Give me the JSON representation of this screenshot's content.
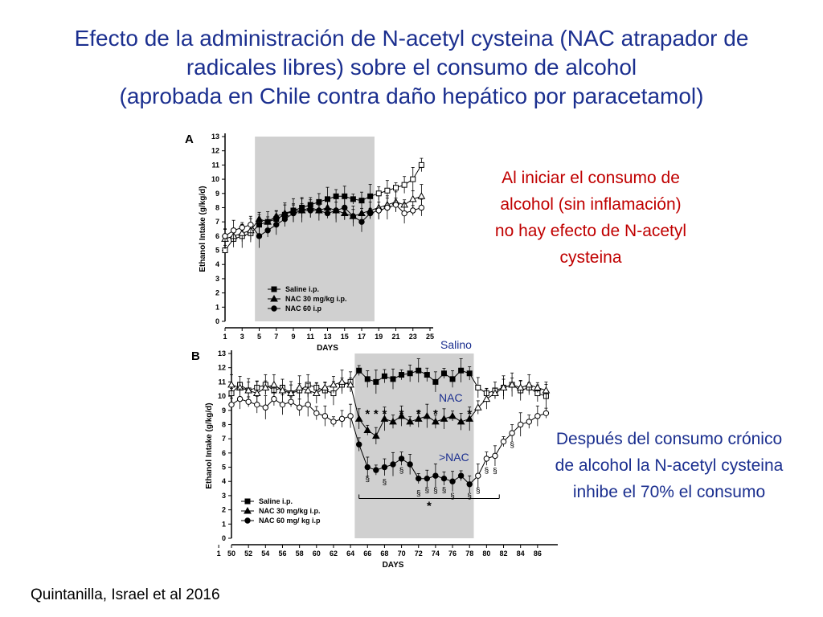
{
  "slide": {
    "title_lines": [
      "Efecto de la administración de N-acetyl cysteina (NAC atrapador de",
      "radicales libres) sobre el consumo de alcohol",
      "(aprobada en Chile contra daño hepático por paracetamol)"
    ],
    "note_top": "Al iniciar el consumo de alcohol (sin inflamación) no hay efecto de N-acetyl cysteina",
    "note_bottom": "Después del consumo crónico de alcohol la N-acetyl cysteina inhibe el 70% el consumo",
    "citation": "Quintanilla, Israel et al 2016",
    "colors": {
      "title": "#1b2f8f",
      "note_top": "#c00000",
      "note_bottom": "#1b2f8f",
      "shade": "#d0d0d0"
    }
  },
  "chart_data": [
    {
      "panel": "A",
      "type": "line",
      "xlabel": "DAYS",
      "ylabel": "Ethanol Intake (g/kg/d)",
      "ylim": [
        0,
        13
      ],
      "xlim": [
        1,
        25
      ],
      "x_ticks": [
        "1",
        "3",
        "5",
        "7",
        "9",
        "11",
        "13",
        "15",
        "17",
        "19",
        "21",
        "23",
        "25"
      ],
      "y_ticks": [
        "0",
        "1",
        "2",
        "3",
        "4",
        "5",
        "6",
        "7",
        "8",
        "9",
        "10",
        "11",
        "12",
        "13"
      ],
      "shaded_x": [
        4.5,
        18.5
      ],
      "legend_position": "bottom-left inside shaded region",
      "x": [
        1,
        2,
        3,
        4,
        5,
        6,
        7,
        8,
        9,
        10,
        11,
        12,
        13,
        14,
        15,
        16,
        17,
        18,
        19,
        20,
        21,
        22,
        23,
        24
      ],
      "series": [
        {
          "name": "Saline i.p.",
          "marker": "square",
          "values": [
            5.0,
            5.8,
            6.0,
            6.2,
            6.8,
            7.0,
            7.2,
            7.5,
            7.8,
            8.0,
            8.2,
            8.4,
            8.6,
            8.8,
            8.8,
            8.6,
            8.5,
            8.8,
            9.0,
            9.2,
            9.4,
            9.6,
            10.0,
            11.0
          ]
        },
        {
          "name": "NAC 30 mg/kg i.p.",
          "marker": "triangle",
          "values": [
            5.8,
            6.0,
            6.2,
            6.4,
            7.2,
            7.0,
            7.4,
            7.6,
            7.8,
            7.8,
            8.0,
            7.8,
            8.0,
            7.8,
            7.6,
            7.4,
            7.6,
            7.8,
            8.0,
            8.2,
            8.4,
            8.2,
            8.6,
            8.8
          ]
        },
        {
          "name": "NAC 60 i.p",
          "marker": "circle",
          "values": [
            6.0,
            6.4,
            6.6,
            6.8,
            6.0,
            6.4,
            6.8,
            7.2,
            7.6,
            7.8,
            7.8,
            7.8,
            7.6,
            7.8,
            8.0,
            7.4,
            7.0,
            7.6,
            7.8,
            8.0,
            8.2,
            7.6,
            7.8,
            8.0
          ]
        }
      ]
    },
    {
      "panel": "B",
      "type": "line",
      "xlabel": "DAYS",
      "ylabel": "Ethanol Intake (g/kg/d)",
      "ylim": [
        0,
        13
      ],
      "xlim": [
        50,
        88
      ],
      "x_ticks": [
        "1",
        "50",
        "52",
        "54",
        "56",
        "58",
        "60",
        "62",
        "64",
        "66",
        "68",
        "70",
        "72",
        "74",
        "76",
        "78",
        "80",
        "82",
        "84",
        "86"
      ],
      "y_ticks": [
        "0",
        "1",
        "2",
        "3",
        "4",
        "5",
        "6",
        "7",
        "8",
        "9",
        "10",
        "11",
        "12",
        "13"
      ],
      "shaded_x": [
        64.5,
        78.5
      ],
      "legend_position": "bottom-left",
      "x": [
        50,
        51,
        52,
        53,
        54,
        55,
        56,
        57,
        58,
        59,
        60,
        61,
        62,
        63,
        64,
        65,
        66,
        67,
        68,
        69,
        70,
        71,
        72,
        73,
        74,
        75,
        76,
        77,
        78,
        79,
        80,
        81,
        82,
        83,
        84,
        85,
        86,
        87
      ],
      "series": [
        {
          "name": "Saline i.p.",
          "marker": "square",
          "values": [
            10.2,
            10.8,
            10.4,
            10.6,
            10.8,
            10.4,
            10.6,
            10.2,
            10.4,
            10.8,
            10.6,
            10.4,
            10.2,
            10.8,
            11.0,
            11.8,
            11.2,
            11.0,
            11.4,
            11.2,
            11.5,
            11.6,
            11.8,
            11.5,
            11.0,
            11.6,
            11.2,
            11.8,
            11.6,
            10.6,
            10.2,
            10.4,
            10.6,
            10.8,
            10.4,
            10.6,
            10.2,
            10.0
          ]
        },
        {
          "name": "NAC 30 mg/kg i.p.",
          "marker": "triangle",
          "values": [
            10.8,
            10.6,
            10.4,
            10.2,
            10.6,
            10.8,
            10.4,
            10.2,
            10.6,
            10.4,
            10.2,
            10.6,
            10.8,
            11.0,
            10.8,
            8.4,
            7.6,
            7.2,
            8.4,
            8.2,
            8.6,
            8.2,
            8.4,
            8.6,
            8.2,
            8.4,
            8.6,
            8.2,
            8.4,
            9.2,
            9.8,
            10.2,
            10.6,
            10.8,
            10.6,
            10.8,
            10.6,
            10.4
          ]
        },
        {
          "name": "NAC 60 mg/ kg i.p",
          "marker": "circle",
          "values": [
            9.4,
            9.8,
            9.6,
            9.4,
            9.2,
            9.8,
            9.4,
            9.6,
            9.2,
            9.4,
            8.8,
            8.6,
            8.2,
            8.4,
            8.6,
            6.6,
            5.0,
            4.8,
            5.0,
            5.2,
            5.6,
            5.2,
            4.2,
            4.2,
            4.4,
            4.2,
            4.0,
            4.4,
            3.8,
            4.4,
            5.6,
            5.8,
            6.8,
            7.4,
            8.0,
            8.2,
            8.6,
            8.8
          ]
        }
      ],
      "annotations": {
        "series_label_1": "Salino",
        "series_label_2": "NAC",
        "series_label_3": ">NAC",
        "significance": "§",
        "star": "*"
      }
    }
  ]
}
